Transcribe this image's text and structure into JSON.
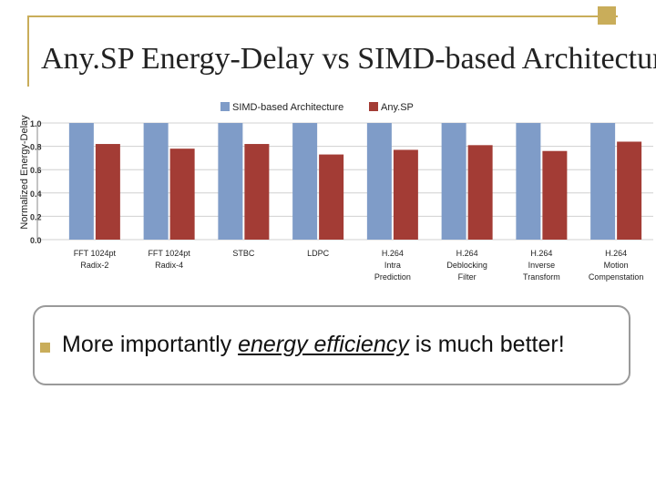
{
  "slide": {
    "title": "Any.SP Energy-Delay vs SIMD-based Architectur",
    "bullet": {
      "before": "More importantly",
      "emphasis": "energy efficiency",
      "after": "is much better!"
    }
  },
  "colors": {
    "frame": "#c9ad5a",
    "simd": "#7f9cc8",
    "anysp": "#a33c35"
  },
  "chart_data": {
    "type": "bar",
    "ylabel": "Normalized Energy-Delay",
    "ylim": [
      0,
      1
    ],
    "yticks": [
      "0.0",
      "0.2",
      "0.4",
      "0.6",
      "0.8",
      "1.0"
    ],
    "legend_position": "top",
    "categories": [
      [
        "FFT 1024pt",
        "Radix-2"
      ],
      [
        "FFT 1024pt",
        "Radix-4"
      ],
      [
        "STBC"
      ],
      [
        "LDPC"
      ],
      [
        "H.264",
        "Intra",
        "Prediction"
      ],
      [
        "H.264",
        "Deblocking",
        "Filter"
      ],
      [
        "H.264",
        "Inverse",
        "Transform"
      ],
      [
        "H.264",
        "Motion",
        "Compenstation"
      ]
    ],
    "series": [
      {
        "name": "SIMD-based Architecture",
        "values": [
          1,
          1,
          1,
          1,
          1,
          1,
          1,
          1
        ]
      },
      {
        "name": "Any.SP",
        "values": [
          0.82,
          0.78,
          0.82,
          0.73,
          0.77,
          0.81,
          0.76,
          0.84
        ]
      }
    ]
  }
}
